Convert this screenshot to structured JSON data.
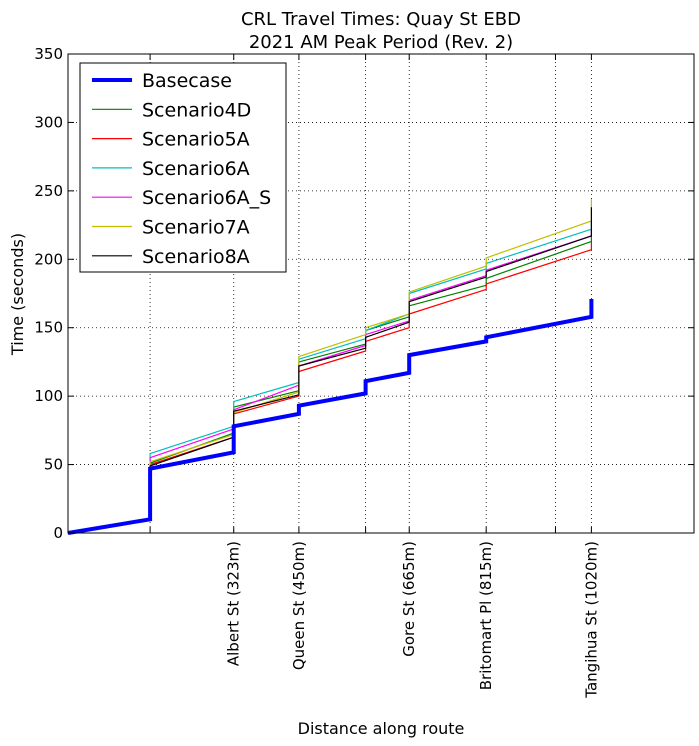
{
  "chart_data": {
    "type": "line",
    "title": "CRL Travel Times: Quay St EBD",
    "subtitle": "2021 AM Peak Period (Rev. 2)",
    "xlabel": "Distance along route",
    "ylabel": "Time (seconds)",
    "xlim": [
      0,
      1220
    ],
    "ylim": [
      0,
      350
    ],
    "yticks": [
      0,
      50,
      100,
      150,
      200,
      250,
      300,
      350
    ],
    "x_gridlines": [
      160,
      323,
      450,
      580,
      665,
      815,
      950,
      1020
    ],
    "x_ticklabels": [
      {
        "x": 323,
        "label": "Albert St (323m)"
      },
      {
        "x": 450,
        "label": "Queen St (450m)"
      },
      {
        "x": 665,
        "label": "Gore St (665m)"
      },
      {
        "x": 815,
        "label": "Britomart Pl (815m)"
      },
      {
        "x": 1020,
        "label": "Tangihua St (1020m)"
      }
    ],
    "grid": true,
    "legend_position": "top-left",
    "series": [
      {
        "name": "Basecase",
        "color": "#0000ff",
        "width": 4,
        "points": [
          [
            0,
            0
          ],
          [
            160,
            10
          ],
          [
            160,
            47
          ],
          [
            323,
            59
          ],
          [
            323,
            78
          ],
          [
            450,
            87
          ],
          [
            450,
            93
          ],
          [
            580,
            102
          ],
          [
            580,
            111
          ],
          [
            665,
            117
          ],
          [
            665,
            130
          ],
          [
            815,
            140
          ],
          [
            815,
            143
          ],
          [
            1020,
            158
          ],
          [
            1020,
            171
          ]
        ]
      },
      {
        "name": "Scenario4D",
        "color": "#008000",
        "width": 1.2,
        "points": [
          [
            0,
            0
          ],
          [
            160,
            10
          ],
          [
            160,
            51
          ],
          [
            323,
            73
          ],
          [
            323,
            92
          ],
          [
            450,
            104
          ],
          [
            450,
            125
          ],
          [
            580,
            138
          ],
          [
            580,
            148
          ],
          [
            665,
            158
          ],
          [
            665,
            166
          ],
          [
            815,
            181
          ],
          [
            815,
            186
          ],
          [
            1020,
            213
          ],
          [
            1020,
            218
          ]
        ]
      },
      {
        "name": "Scenario5A",
        "color": "#ff0000",
        "width": 1.2,
        "points": [
          [
            0,
            0
          ],
          [
            160,
            10
          ],
          [
            160,
            50
          ],
          [
            323,
            70
          ],
          [
            323,
            87
          ],
          [
            450,
            100
          ],
          [
            450,
            118
          ],
          [
            580,
            133
          ],
          [
            580,
            140
          ],
          [
            665,
            150
          ],
          [
            665,
            160
          ],
          [
            815,
            178
          ],
          [
            815,
            182
          ],
          [
            1020,
            207
          ],
          [
            1020,
            212
          ]
        ]
      },
      {
        "name": "Scenario6A",
        "color": "#00bfbf",
        "width": 1.2,
        "points": [
          [
            0,
            0
          ],
          [
            160,
            10
          ],
          [
            160,
            58
          ],
          [
            323,
            78
          ],
          [
            323,
            96
          ],
          [
            450,
            110
          ],
          [
            450,
            127
          ],
          [
            580,
            142
          ],
          [
            580,
            148
          ],
          [
            665,
            160
          ],
          [
            665,
            175
          ],
          [
            815,
            193
          ],
          [
            815,
            197
          ],
          [
            1020,
            222
          ],
          [
            1020,
            227
          ]
        ]
      },
      {
        "name": "Scenario6A_S",
        "color": "#ff00ff",
        "width": 1.2,
        "points": [
          [
            0,
            0
          ],
          [
            160,
            10
          ],
          [
            160,
            55
          ],
          [
            323,
            76
          ],
          [
            323,
            90
          ],
          [
            450,
            108
          ],
          [
            450,
            122
          ],
          [
            580,
            137
          ],
          [
            580,
            145
          ],
          [
            665,
            155
          ],
          [
            665,
            170
          ],
          [
            815,
            188
          ],
          [
            815,
            192
          ],
          [
            1020,
            217
          ],
          [
            1020,
            222
          ]
        ]
      },
      {
        "name": "Scenario7A",
        "color": "#bfbf00",
        "width": 1.2,
        "points": [
          [
            0,
            0
          ],
          [
            160,
            10
          ],
          [
            160,
            52
          ],
          [
            323,
            72
          ],
          [
            323,
            88
          ],
          [
            450,
            103
          ],
          [
            450,
            129
          ],
          [
            580,
            145
          ],
          [
            580,
            150
          ],
          [
            665,
            160
          ],
          [
            665,
            176
          ],
          [
            815,
            195
          ],
          [
            815,
            201
          ],
          [
            1020,
            228
          ],
          [
            1020,
            244
          ]
        ]
      },
      {
        "name": "Scenario8A",
        "color": "#000000",
        "width": 1.2,
        "points": [
          [
            0,
            0
          ],
          [
            160,
            10
          ],
          [
            160,
            49
          ],
          [
            323,
            70
          ],
          [
            323,
            89
          ],
          [
            450,
            101
          ],
          [
            450,
            122
          ],
          [
            580,
            135
          ],
          [
            580,
            143
          ],
          [
            665,
            154
          ],
          [
            665,
            169
          ],
          [
            815,
            187
          ],
          [
            815,
            191
          ],
          [
            1020,
            217
          ],
          [
            1020,
            238
          ]
        ]
      }
    ]
  }
}
